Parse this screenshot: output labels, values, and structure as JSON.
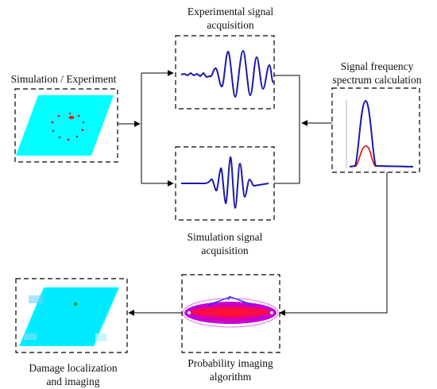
{
  "labels": {
    "experimental": [
      "Experimental signal",
      "acquisition"
    ],
    "simulation_experiment": "Simulation / Experiment",
    "spectrum": [
      "Signal frequency",
      "spectrum calculation"
    ],
    "simulation_signal": [
      "Simulation signal",
      "acquisition"
    ],
    "probability": [
      "Probability imaging",
      "algorithm"
    ],
    "damage": [
      "Damage localization",
      "and imaging"
    ]
  },
  "colors": {
    "line": "#000000",
    "box_border": "#000000",
    "plate": "#00ffff",
    "signal": "#1a1aaa",
    "spectrum_main": "#1a1aaa",
    "spectrum_secondary": "#e02020",
    "ellipse": "#e020e0",
    "ellipse_core": "#e0003c",
    "damage_dot": "#e02020",
    "damage_mark": "#1a8a1a"
  },
  "icons": {
    "simulation_experiment": "plate-with-sensor-ring-icon",
    "experimental_signal": "noisy-waveform-icon",
    "simulation_signal": "clean-waveform-icon",
    "spectrum": "frequency-peak-icon",
    "probability": "elliptical-probability-icon",
    "damage": "damage-localization-plate-icon"
  }
}
